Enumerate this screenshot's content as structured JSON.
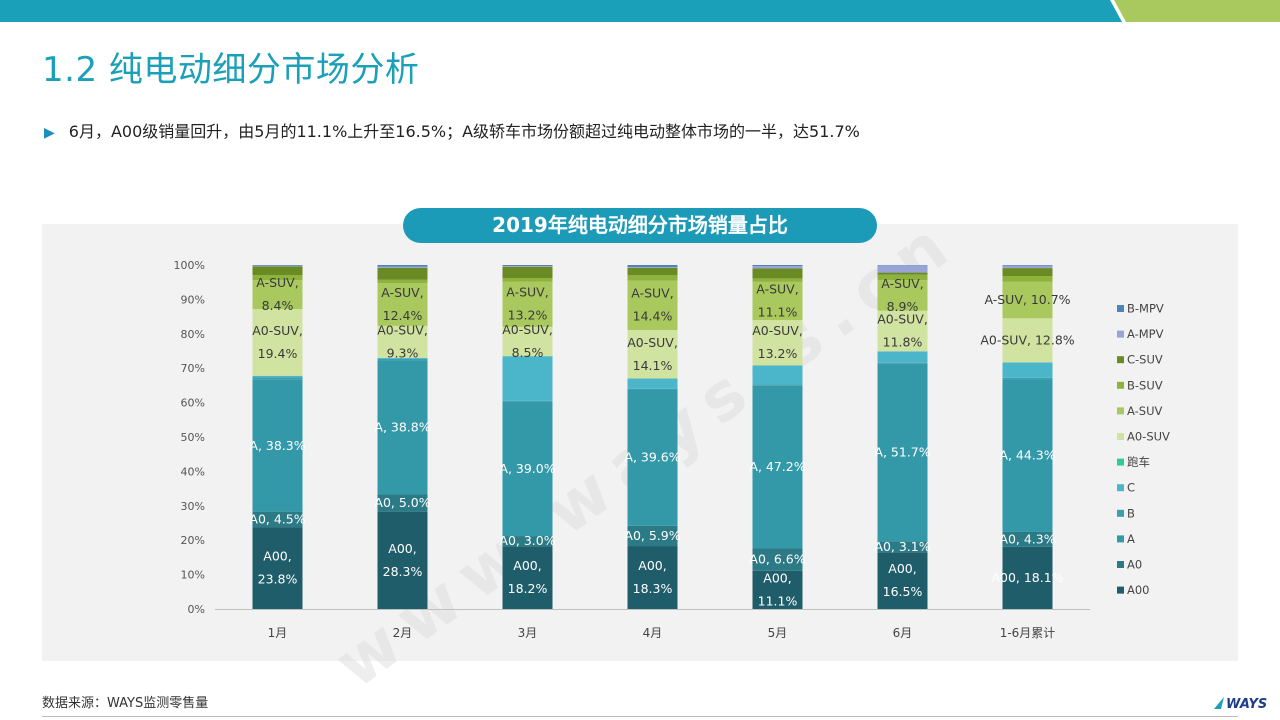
{
  "header": {
    "title": "1.2 纯电动细分市场分析",
    "bullet": "6月，A00级销量回升，由5月的11.1%上升至16.5%；A级轿车市场份额超过纯电动整体市场的一半，达51.7%"
  },
  "footer": {
    "source": "数据来源：WAYS监测零售量",
    "logo_text": "WAYS"
  },
  "watermark": {
    "text": "www.ways-s.cn"
  },
  "colors": {
    "teal": "#1aa0b8",
    "green": "#a9c95f",
    "panel_bg": "#f2f2f2"
  },
  "chart_data": {
    "type": "bar",
    "stacked": true,
    "title": "2019年纯电动细分市场销量占比",
    "categories": [
      "1月",
      "2月",
      "3月",
      "4月",
      "5月",
      "6月",
      "1-6月累计"
    ],
    "yticks": [
      "0%",
      "10%",
      "20%",
      "30%",
      "40%",
      "50%",
      "60%",
      "70%",
      "80%",
      "90%",
      "100%"
    ],
    "ylim": [
      0,
      100
    ],
    "legend_position": "right",
    "series": [
      {
        "name": "A00",
        "color": "#1f5d6b",
        "values": [
          23.8,
          28.3,
          18.2,
          18.3,
          11.1,
          16.5,
          18.1
        ],
        "labels": [
          [
            "A00,",
            "23.8%"
          ],
          [
            "A00,",
            "28.3%"
          ],
          [
            "A00,",
            "18.2%"
          ],
          [
            "A00,",
            "18.3%"
          ],
          [
            "A00,",
            "11.1%"
          ],
          [
            "A00,",
            "16.5%"
          ],
          [
            "A00, 18.1%"
          ]
        ]
      },
      {
        "name": "A0",
        "color": "#2c7a86",
        "values": [
          4.5,
          5.0,
          3.0,
          5.9,
          6.6,
          3.1,
          4.3
        ],
        "labels": [
          [
            "A0, 4.5%"
          ],
          [
            "A0, 5.0%"
          ],
          [
            "A0, 3.0%"
          ],
          [
            "A0, 5.9%"
          ],
          [
            "A0, 6.6%"
          ],
          [
            "A0, 3.1%"
          ],
          [
            "A0, 4.3%"
          ]
        ]
      },
      {
        "name": "A",
        "color": "#3399a9",
        "values": [
          38.3,
          38.8,
          39.0,
          39.6,
          47.2,
          51.7,
          44.3
        ],
        "labels": [
          [
            "A, 38.3%"
          ],
          [
            "A, 38.8%"
          ],
          [
            "A, 39.0%"
          ],
          [
            "A, 39.6%"
          ],
          [
            "A, 47.2%"
          ],
          [
            "A, 51.7%"
          ],
          [
            "A, 44.3%"
          ]
        ]
      },
      {
        "name": "B",
        "color": "#3d9eae",
        "values": [
          0.8,
          0.6,
          0.3,
          0.2,
          0.4,
          0.3,
          0.5
        ],
        "labels": []
      },
      {
        "name": "C",
        "color": "#4bb6c9",
        "values": [
          0.4,
          0.3,
          13.0,
          3.0,
          5.5,
          3.3,
          4.5
        ],
        "labels": []
      },
      {
        "name": "跑车",
        "color": "#2ecc9a",
        "values": [
          0,
          0,
          0,
          0,
          0,
          0,
          0
        ],
        "labels": []
      },
      {
        "name": "A0-SUV",
        "color": "#d1e3a1",
        "values": [
          19.4,
          9.3,
          8.5,
          14.1,
          13.2,
          11.8,
          12.8
        ],
        "labels": [
          [
            "A0-SUV,",
            "19.4%"
          ],
          [
            "A0-SUV,",
            "9.3%"
          ],
          [
            "A0-SUV,",
            "8.5%"
          ],
          [
            "A0-SUV,",
            "14.1%"
          ],
          [
            "A0-SUV,",
            "13.2%"
          ],
          [
            "A0-SUV,",
            "11.8%"
          ],
          [
            "A0-SUV, 12.8%"
          ]
        ]
      },
      {
        "name": "A-SUV",
        "color": "#a9c95f",
        "values": [
          8.4,
          12.4,
          13.2,
          14.4,
          11.1,
          8.9,
          10.7
        ],
        "labels": [
          [
            "A-SUV,",
            "8.4%"
          ],
          [
            "A-SUV,",
            "12.4%"
          ],
          [
            "A-SUV,",
            "13.2%"
          ],
          [
            "A-SUV,",
            "14.4%"
          ],
          [
            "A-SUV,",
            "11.1%"
          ],
          [
            "A-SUV,",
            "8.9%"
          ],
          [
            "A-SUV, 10.7%"
          ]
        ]
      },
      {
        "name": "B-SUV",
        "color": "#8db33c",
        "values": [
          1.5,
          1.0,
          1.0,
          1.5,
          1.0,
          1.6,
          1.6
        ],
        "labels": []
      },
      {
        "name": "C-SUV",
        "color": "#6a8a24",
        "values": [
          2.5,
          3.5,
          3.3,
          2.2,
          2.9,
          0.6,
          2.3
        ],
        "labels": []
      },
      {
        "name": "A-MPV",
        "color": "#9aa3d6",
        "values": [
          0.2,
          0.3,
          0.2,
          0.2,
          0.7,
          2.1,
          0.7
        ],
        "labels": []
      },
      {
        "name": "B-MPV",
        "color": "#4f84b8",
        "values": [
          0.2,
          0.5,
          0.3,
          0.6,
          0.3,
          0.1,
          0.2
        ],
        "labels": []
      }
    ]
  }
}
